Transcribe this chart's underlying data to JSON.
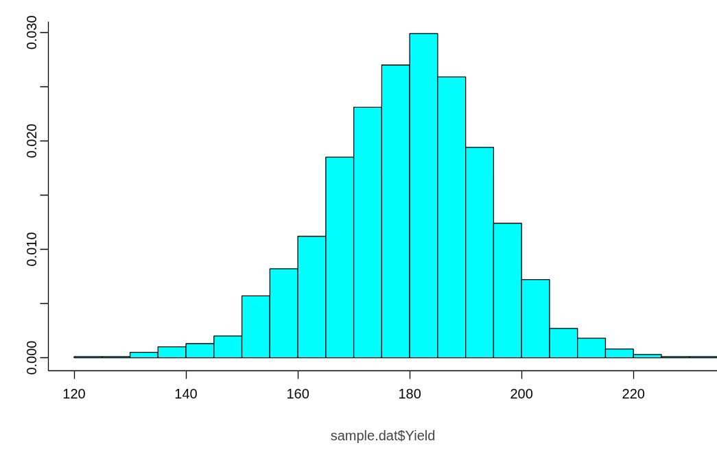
{
  "chart_data": {
    "type": "histogram",
    "xlabel": "sample.dat$Yield",
    "bins": [
      120,
      125,
      130,
      135,
      140,
      145,
      150,
      155,
      160,
      165,
      170,
      175,
      180,
      185,
      190,
      195,
      200,
      205,
      210,
      215,
      220,
      225,
      230,
      235
    ],
    "values": [
      0.0001,
      0.0001,
      0.0005,
      0.001,
      0.0013,
      0.002,
      0.0057,
      0.0082,
      0.0112,
      0.0185,
      0.0231,
      0.027,
      0.0299,
      0.0259,
      0.0194,
      0.0124,
      0.0072,
      0.0027,
      0.0018,
      0.0008,
      0.0003,
      0.0001,
      0.0001
    ],
    "color": "#00ffff",
    "xlim": [
      115.4,
      235
    ],
    "ylim": [
      -0.0012,
      0.031
    ],
    "xticks": [
      120,
      140,
      160,
      180,
      200,
      220
    ],
    "yticks": [
      {
        "value": 0,
        "label": "0.000"
      },
      {
        "value": 0.005,
        "label": null
      },
      {
        "value": 0.01,
        "label": "0.010"
      },
      {
        "value": 0.015,
        "label": null
      },
      {
        "value": 0.02,
        "label": "0.020"
      },
      {
        "value": 0.025,
        "label": null
      },
      {
        "value": 0.03,
        "label": "0.030"
      }
    ],
    "grid": false
  }
}
